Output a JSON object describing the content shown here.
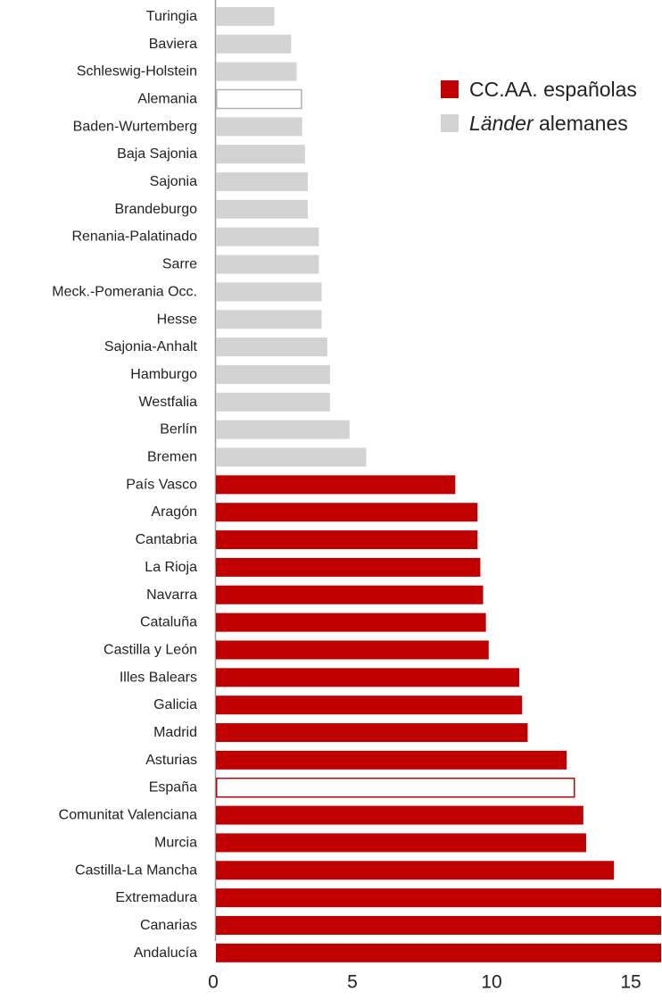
{
  "chart_data": {
    "type": "bar",
    "orientation": "horizontal",
    "xlim": [
      0,
      16
    ],
    "x_ticks": [
      0,
      5,
      10,
      15
    ],
    "bars": [
      {
        "label": "Turingia",
        "value": 2.1,
        "group": "de"
      },
      {
        "label": "Baviera",
        "value": 2.7,
        "group": "de"
      },
      {
        "label": "Schleswig-Holstein",
        "value": 2.9,
        "group": "de"
      },
      {
        "label": "Alemania",
        "value": 3.1,
        "group": "de",
        "aggregate": true
      },
      {
        "label": "Baden-Wurtemberg",
        "value": 3.1,
        "group": "de"
      },
      {
        "label": "Baja Sajonia",
        "value": 3.2,
        "group": "de"
      },
      {
        "label": "Sajonia",
        "value": 3.3,
        "group": "de"
      },
      {
        "label": "Brandeburgo",
        "value": 3.3,
        "group": "de"
      },
      {
        "label": "Renania-Palatinado",
        "value": 3.7,
        "group": "de"
      },
      {
        "label": "Sarre",
        "value": 3.7,
        "group": "de"
      },
      {
        "label": "Meck.-Pomerania Occ.",
        "value": 3.8,
        "group": "de"
      },
      {
        "label": "Hesse",
        "value": 3.8,
        "group": "de"
      },
      {
        "label": "Sajonia-Anhalt",
        "value": 4.0,
        "group": "de"
      },
      {
        "label": "Hamburgo",
        "value": 4.1,
        "group": "de"
      },
      {
        "label": "Westfalia",
        "value": 4.1,
        "group": "de"
      },
      {
        "label": "Berlín",
        "value": 4.8,
        "group": "de"
      },
      {
        "label": "Bremen",
        "value": 5.4,
        "group": "de"
      },
      {
        "label": "País Vasco",
        "value": 8.6,
        "group": "es"
      },
      {
        "label": "Aragón",
        "value": 9.4,
        "group": "es"
      },
      {
        "label": "Cantabria",
        "value": 9.4,
        "group": "es"
      },
      {
        "label": "La Rioja",
        "value": 9.5,
        "group": "es"
      },
      {
        "label": "Navarra",
        "value": 9.6,
        "group": "es"
      },
      {
        "label": "Cataluña",
        "value": 9.7,
        "group": "es"
      },
      {
        "label": "Castilla y León",
        "value": 9.8,
        "group": "es"
      },
      {
        "label": "Illes Balears",
        "value": 10.9,
        "group": "es"
      },
      {
        "label": "Galicia",
        "value": 11.0,
        "group": "es"
      },
      {
        "label": "Madrid",
        "value": 11.2,
        "group": "es"
      },
      {
        "label": "Asturias",
        "value": 12.6,
        "group": "es"
      },
      {
        "label": "España",
        "value": 12.9,
        "group": "es",
        "aggregate": true
      },
      {
        "label": "Comunitat Valenciana",
        "value": 13.2,
        "group": "es"
      },
      {
        "label": "Murcia",
        "value": 13.3,
        "group": "es"
      },
      {
        "label": "Castilla-La Mancha",
        "value": 14.3,
        "group": "es"
      },
      {
        "label": "Extremadura",
        "value": 16.2,
        "group": "es"
      },
      {
        "label": "Canarias",
        "value": 16.2,
        "group": "es"
      },
      {
        "label": "Andalucía",
        "value": 16.2,
        "group": "es"
      }
    ],
    "legend": {
      "placement": "top-right",
      "items": [
        {
          "group": "es",
          "label": "CC.AA. españolas"
        },
        {
          "group": "de",
          "label_italic": "Länder",
          "label_rest": " alemanes"
        }
      ]
    },
    "colors": {
      "es": "#c00000",
      "de": "#d3d3d3",
      "de_outline": "#b0b0b0",
      "axis": "#999999",
      "text": "#222222"
    }
  }
}
